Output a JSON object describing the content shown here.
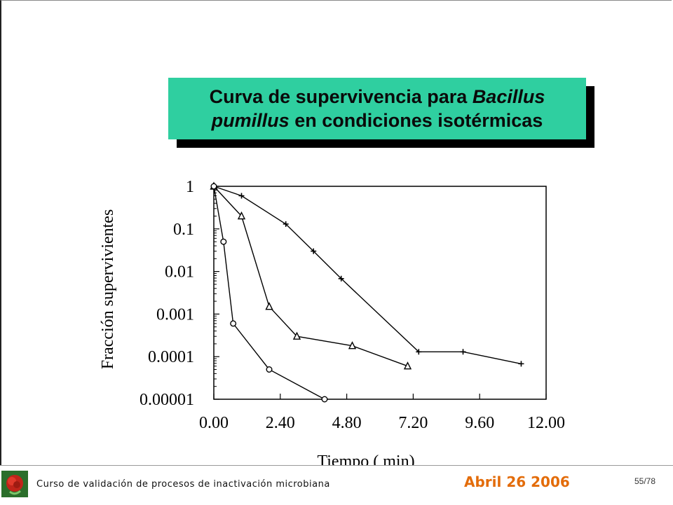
{
  "slide": {
    "title_line1_prefix": "Curva de supervivencia para ",
    "title_line1_italic": "Bacillus",
    "title_line2_italic": "pumillus",
    "title_line2_suffix": " en condiciones isotérmicas",
    "title_bg_color": "#2fcfa0"
  },
  "footer": {
    "course": "Curso de validación de procesos de inactivación microbiana",
    "date": "Abril 26 2006",
    "page": "55/78",
    "date_color": "#e36c0a",
    "logo_icon": "rose-icon"
  },
  "chart_data": {
    "type": "scatter",
    "title": "",
    "xlabel": "Tiempo ( min)",
    "ylabel": "Fracción supervivientes",
    "xlim": [
      0,
      12
    ],
    "ylim": [
      1e-05,
      1
    ],
    "yscale": "log",
    "grid": false,
    "x_ticks": [
      "0.00",
      "2.40",
      "4.80",
      "7.20",
      "9.60",
      "12.00"
    ],
    "y_ticks": [
      "1",
      "0.1",
      "0.01",
      "0.001",
      "0.0001",
      "0.00001"
    ],
    "series": [
      {
        "marker": "plus",
        "x": [
          0.0,
          1.0,
          2.6,
          3.6,
          4.6,
          7.4,
          9.0,
          11.1
        ],
        "y": [
          1,
          0.6,
          0.13,
          0.03,
          0.0068,
          0.00013,
          0.00013,
          6.8e-05
        ]
      },
      {
        "marker": "triangle",
        "x": [
          0.0,
          1.0,
          2.0,
          3.0,
          5.0,
          7.0
        ],
        "y": [
          1,
          0.2,
          0.0015,
          0.0003,
          0.00018,
          6e-05
        ]
      },
      {
        "marker": "circle",
        "x": [
          0.0,
          0.35,
          0.7,
          2.0,
          4.0
        ],
        "y": [
          1,
          0.05,
          0.0006,
          5e-05,
          1e-05
        ]
      }
    ]
  }
}
